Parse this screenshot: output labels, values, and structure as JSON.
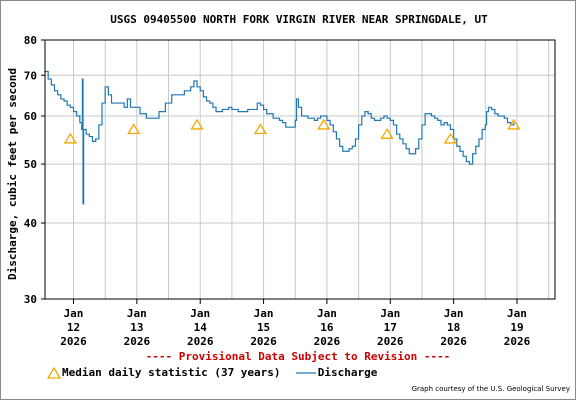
{
  "chart_data": {
    "type": "line",
    "title": "USGS 09405500 NORTH FORK VIRGIN RIVER NEAR SPRINGDALE, UT",
    "ylabel": "Discharge, cubic feet per second",
    "xlabel": "",
    "yscale": "log",
    "ylim": [
      30,
      80
    ],
    "xlim": [
      11.55,
      19.6
    ],
    "grid": true,
    "yticks": [
      30,
      40,
      50,
      60,
      70,
      80
    ],
    "xticks": [
      {
        "x": 12,
        "lines": [
          "Jan",
          "12",
          "2026"
        ]
      },
      {
        "x": 13,
        "lines": [
          "Jan",
          "13",
          "2026"
        ]
      },
      {
        "x": 14,
        "lines": [
          "Jan",
          "14",
          "2026"
        ]
      },
      {
        "x": 15,
        "lines": [
          "Jan",
          "15",
          "2026"
        ]
      },
      {
        "x": 16,
        "lines": [
          "Jan",
          "16",
          "2026"
        ]
      },
      {
        "x": 17,
        "lines": [
          "Jan",
          "17",
          "2026"
        ]
      },
      {
        "x": 18,
        "lines": [
          "Jan",
          "18",
          "2026"
        ]
      },
      {
        "x": 19,
        "lines": [
          "Jan",
          "19",
          "2026"
        ]
      }
    ],
    "series": [
      {
        "name": "Discharge",
        "style": "line",
        "color": "#1f78b4",
        "points": [
          [
            11.55,
            71
          ],
          [
            11.6,
            69
          ],
          [
            11.65,
            67.5
          ],
          [
            11.7,
            66
          ],
          [
            11.75,
            65
          ],
          [
            11.8,
            64
          ],
          [
            11.85,
            63.5
          ],
          [
            11.9,
            62.5
          ],
          [
            11.95,
            62
          ],
          [
            12.0,
            61
          ],
          [
            12.05,
            60
          ],
          [
            12.1,
            58.5
          ],
          [
            12.13,
            57
          ],
          [
            12.14,
            69
          ],
          [
            12.15,
            43
          ],
          [
            12.16,
            57
          ],
          [
            12.2,
            56
          ],
          [
            12.25,
            55.5
          ],
          [
            12.3,
            54.5
          ],
          [
            12.35,
            55
          ],
          [
            12.4,
            58
          ],
          [
            12.45,
            63
          ],
          [
            12.5,
            67
          ],
          [
            12.55,
            65
          ],
          [
            12.6,
            63
          ],
          [
            12.7,
            63
          ],
          [
            12.8,
            62
          ],
          [
            12.85,
            64
          ],
          [
            12.9,
            62
          ],
          [
            13.0,
            62
          ],
          [
            13.05,
            60.5
          ],
          [
            13.15,
            59.5
          ],
          [
            13.25,
            59.5
          ],
          [
            13.35,
            61
          ],
          [
            13.45,
            63
          ],
          [
            13.55,
            65
          ],
          [
            13.65,
            65
          ],
          [
            13.75,
            66
          ],
          [
            13.85,
            67
          ],
          [
            13.9,
            68.5
          ],
          [
            13.95,
            67
          ],
          [
            14.0,
            66
          ],
          [
            14.05,
            64.5
          ],
          [
            14.1,
            63.5
          ],
          [
            14.15,
            63
          ],
          [
            14.2,
            62
          ],
          [
            14.25,
            61
          ],
          [
            14.3,
            61
          ],
          [
            14.35,
            61.5
          ],
          [
            14.45,
            62
          ],
          [
            14.5,
            61.5
          ],
          [
            14.55,
            61.5
          ],
          [
            14.6,
            61
          ],
          [
            14.65,
            61
          ],
          [
            14.7,
            61
          ],
          [
            14.75,
            61.5
          ],
          [
            14.85,
            61.5
          ],
          [
            14.9,
            63
          ],
          [
            14.95,
            62.5
          ],
          [
            15.0,
            61.5
          ],
          [
            15.05,
            60.5
          ],
          [
            15.15,
            59.5
          ],
          [
            15.25,
            59
          ],
          [
            15.3,
            58.5
          ],
          [
            15.35,
            57.5
          ],
          [
            15.45,
            57.5
          ],
          [
            15.5,
            59
          ],
          [
            15.52,
            64
          ],
          [
            15.55,
            62
          ],
          [
            15.6,
            60
          ],
          [
            15.7,
            59.5
          ],
          [
            15.8,
            59
          ],
          [
            15.85,
            59.5
          ],
          [
            15.9,
            60
          ],
          [
            15.95,
            60
          ],
          [
            16.0,
            59
          ],
          [
            16.05,
            58
          ],
          [
            16.1,
            56.5
          ],
          [
            16.15,
            55
          ],
          [
            16.2,
            53.5
          ],
          [
            16.25,
            52.5
          ],
          [
            16.3,
            52.5
          ],
          [
            16.35,
            53
          ],
          [
            16.4,
            53.5
          ],
          [
            16.45,
            55
          ],
          [
            16.5,
            58
          ],
          [
            16.55,
            60
          ],
          [
            16.6,
            61
          ],
          [
            16.65,
            60.5
          ],
          [
            16.7,
            59.5
          ],
          [
            16.75,
            59
          ],
          [
            16.8,
            59
          ],
          [
            16.85,
            59.5
          ],
          [
            16.9,
            60
          ],
          [
            16.95,
            59.5
          ],
          [
            17.0,
            59
          ],
          [
            17.05,
            58
          ],
          [
            17.1,
            56
          ],
          [
            17.15,
            55
          ],
          [
            17.2,
            54
          ],
          [
            17.25,
            53
          ],
          [
            17.3,
            52
          ],
          [
            17.35,
            52
          ],
          [
            17.4,
            53
          ],
          [
            17.45,
            55
          ],
          [
            17.5,
            58
          ],
          [
            17.55,
            60.5
          ],
          [
            17.6,
            60.5
          ],
          [
            17.65,
            60
          ],
          [
            17.7,
            59.5
          ],
          [
            17.75,
            59
          ],
          [
            17.8,
            58
          ],
          [
            17.85,
            58.5
          ],
          [
            17.9,
            58
          ],
          [
            17.95,
            57
          ],
          [
            18.0,
            55
          ],
          [
            18.05,
            53.5
          ],
          [
            18.1,
            52.5
          ],
          [
            18.15,
            51.5
          ],
          [
            18.2,
            50.5
          ],
          [
            18.25,
            50
          ],
          [
            18.3,
            52
          ],
          [
            18.35,
            53.5
          ],
          [
            18.4,
            55
          ],
          [
            18.45,
            57
          ],
          [
            18.5,
            58
          ],
          [
            18.52,
            61
          ],
          [
            18.55,
            62
          ],
          [
            18.6,
            61.5
          ],
          [
            18.65,
            60.5
          ],
          [
            18.7,
            60
          ],
          [
            18.75,
            60
          ],
          [
            18.8,
            59.5
          ],
          [
            18.85,
            58.5
          ],
          [
            18.9,
            58
          ],
          [
            18.95,
            58.5
          ]
        ]
      },
      {
        "name": "Median daily statistic (37 years)",
        "style": "marker",
        "marker": "triangle",
        "color": "#f2a900",
        "points": [
          [
            11.95,
            55
          ],
          [
            12.95,
            57
          ],
          [
            13.95,
            58
          ],
          [
            14.95,
            57
          ],
          [
            15.95,
            58
          ],
          [
            16.95,
            56
          ],
          [
            17.95,
            55
          ],
          [
            18.95,
            58
          ]
        ]
      }
    ]
  },
  "provisional_notice": "---- Provisional Data Subject to Revision ----",
  "legend": {
    "median_label": "Median daily statistic (37 years)",
    "discharge_label": "Discharge"
  },
  "credit": "Graph courtesy of the U.S. Geological Survey",
  "colors": {
    "discharge": "#1f78b4",
    "median": "#f2a900",
    "provisional": "#cc0000",
    "grid": "#c8c8c8"
  }
}
